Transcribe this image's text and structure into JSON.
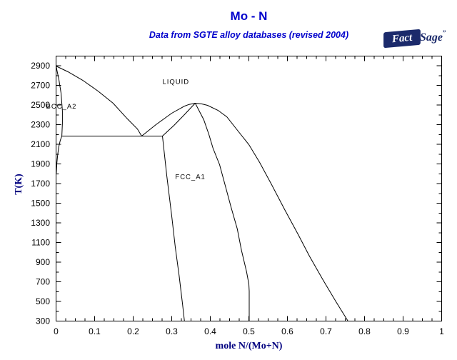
{
  "header": {
    "title": "Mo - N",
    "subtitle": "Data from SGTE alloy databases (revised 2004)",
    "logo": {
      "fact": "Fact",
      "sage": "Sage",
      "mark": "”"
    }
  },
  "colors": {
    "title_blue": "#0000cc",
    "axis_label_navy": "#000080",
    "logo_navy": "#1b2a6b",
    "curve_color": "#000000",
    "background": "#ffffff"
  },
  "chart_data": {
    "type": "line",
    "title": "Mo - N",
    "subtitle": "Data from SGTE alloy databases (revised 2004)",
    "xlabel": "mole N/(Mo+N)",
    "ylabel": "T(K)",
    "xlim": [
      0,
      1
    ],
    "ylim": [
      300,
      3000
    ],
    "grid": false,
    "legend": "none",
    "x_major_ticks": [
      0,
      0.1,
      0.2,
      0.3,
      0.4,
      0.5,
      0.6,
      0.7,
      0.8,
      0.9,
      1
    ],
    "x_tick_labels": [
      "0",
      "0.1",
      "0.2",
      "0.3",
      "0.4",
      "0.5",
      "0.6",
      "0.7",
      "0.8",
      "0.9",
      "1"
    ],
    "x_minor_step": 0.025,
    "y_major_ticks": [
      300,
      500,
      700,
      900,
      1100,
      1300,
      1500,
      1700,
      1900,
      2100,
      2300,
      2500,
      2700,
      2900
    ],
    "y_tick_labels": [
      "300",
      "500",
      "700",
      "900",
      "1100",
      "1300",
      "1500",
      "1700",
      "1900",
      "2100",
      "2300",
      "2500",
      "2700",
      "2900"
    ],
    "y_minor_step": 100,
    "phase_labels": [
      {
        "text": "LIQUID",
        "x": 0.276,
        "T": 2738
      },
      {
        "text": "BCC_A2",
        "x": -0.026,
        "T": 2487
      },
      {
        "text": "FCC_A1",
        "x": 0.309,
        "T": 1770
      }
    ],
    "series": [
      {
        "name": "liquidus",
        "points": [
          [
            0,
            2898
          ],
          [
            0.031,
            2840
          ],
          [
            0.069,
            2753
          ],
          [
            0.109,
            2643
          ],
          [
            0.148,
            2520
          ],
          [
            0.185,
            2360
          ],
          [
            0.211,
            2258
          ],
          [
            0.222,
            2185
          ],
          [
            0.259,
            2301
          ],
          [
            0.3,
            2418
          ],
          [
            0.333,
            2490
          ],
          [
            0.345,
            2507
          ],
          [
            0.361,
            2520
          ],
          [
            0.377,
            2513
          ],
          [
            0.393,
            2498
          ],
          [
            0.42,
            2447
          ],
          [
            0.443,
            2381
          ],
          [
            0.472,
            2236
          ],
          [
            0.5,
            2098
          ],
          [
            0.528,
            1916
          ],
          [
            0.559,
            1690
          ],
          [
            0.593,
            1435
          ],
          [
            0.628,
            1181
          ],
          [
            0.657,
            962
          ],
          [
            0.693,
            715
          ],
          [
            0.726,
            497
          ],
          [
            0.757,
            300
          ]
        ]
      },
      {
        "name": "eutectic-isotherm",
        "points": [
          [
            0.015,
            2185
          ],
          [
            0.276,
            2185
          ]
        ]
      },
      {
        "name": "bcc-solvus",
        "points": [
          [
            0,
            2898
          ],
          [
            0.007,
            2767
          ],
          [
            0.013,
            2622
          ],
          [
            0.0165,
            2440
          ],
          [
            0.0165,
            2316
          ],
          [
            0.015,
            2185
          ],
          [
            0.011,
            2141
          ],
          [
            0.007,
            2076
          ],
          [
            0.004,
            1988
          ],
          [
            0.002,
            1908
          ],
          [
            0.0005,
            1807
          ]
        ]
      },
      {
        "name": "fcc-solidus",
        "points": [
          [
            0.276,
            2185
          ],
          [
            0.306,
            2294
          ],
          [
            0.333,
            2403
          ],
          [
            0.352,
            2483
          ],
          [
            0.361,
            2520
          ]
        ]
      },
      {
        "name": "fcc-left-boundary",
        "points": [
          [
            0.276,
            2185
          ],
          [
            0.287,
            1785
          ],
          [
            0.3,
            1370
          ],
          [
            0.309,
            1057
          ],
          [
            0.319,
            766
          ],
          [
            0.328,
            475
          ],
          [
            0.333,
            300
          ]
        ]
      },
      {
        "name": "fcc-right-boundary",
        "points": [
          [
            0.361,
            2520
          ],
          [
            0.383,
            2352
          ],
          [
            0.396,
            2207
          ],
          [
            0.407,
            2061
          ],
          [
            0.424,
            1894
          ],
          [
            0.439,
            1676
          ],
          [
            0.454,
            1457
          ],
          [
            0.47,
            1239
          ],
          [
            0.481,
            1020
          ],
          [
            0.494,
            802
          ],
          [
            0.5,
            678
          ],
          [
            0.501,
            606
          ],
          [
            0.501,
            300
          ]
        ]
      }
    ]
  }
}
